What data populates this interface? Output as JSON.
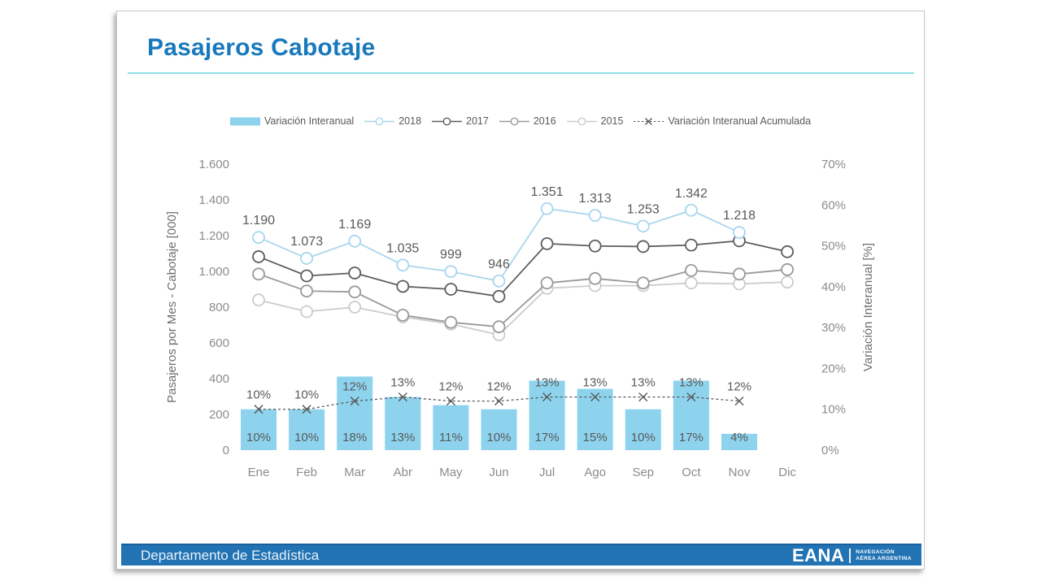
{
  "page": {
    "title": "Pasajeros Cabotaje"
  },
  "footer": {
    "department": "Departamento de Estadística",
    "logo_text": "EANA",
    "logo_sub1": "NAVEGACIÓN",
    "logo_sub2": "AÉREA ARGENTINA"
  },
  "colors": {
    "title_blue": "#1879bd",
    "title_underline": "#8ce1ea",
    "footer_blue": "#2173b4",
    "bar_fill": "#8ed3ee",
    "line_2018": "#a8d6ec",
    "line_2017": "#5d5d5d",
    "line_2016": "#9a9a9a",
    "line_2015": "#cccccc",
    "line_acumulada": "#5a5a5a",
    "label_gray": "#595959",
    "tick_gray": "#8c8c8c"
  },
  "chart_data": {
    "type": "combo bar+line",
    "categories": [
      "Ene",
      "Feb",
      "Mar",
      "Abr",
      "May",
      "Jun",
      "Jul",
      "Ago",
      "Sep",
      "Oct",
      "Nov",
      "Dic"
    ],
    "left_axis": {
      "title": "Pasajeros por Mes - Cabotaje [000]",
      "min": 0,
      "max": 1600,
      "tick_step": 200,
      "ticks": [
        "0",
        "200",
        "400",
        "600",
        "800",
        "1.000",
        "1.200",
        "1.400",
        "1.600"
      ]
    },
    "right_axis": {
      "title": "Variación Interanual [%]",
      "min": 0,
      "max": 70,
      "tick_step": 10,
      "ticks": [
        "0%",
        "10%",
        "20%",
        "30%",
        "40%",
        "50%",
        "60%",
        "70%"
      ]
    },
    "legend_position": "top",
    "grid": false,
    "series": [
      {
        "name": "Variación Interanual",
        "type": "bar",
        "axis": "right",
        "color": "#8ed3ee",
        "values": [
          10,
          10,
          18,
          13,
          11,
          10,
          17,
          15,
          10,
          17,
          4,
          null
        ],
        "labels": [
          "10%",
          "10%",
          "18%",
          "13%",
          "11%",
          "10%",
          "17%",
          "15%",
          "10%",
          "17%",
          "4%",
          null
        ]
      },
      {
        "name": "2018",
        "type": "line",
        "axis": "left",
        "color": "#a8d6ec",
        "values": [
          1190,
          1073,
          1169,
          1035,
          999,
          946,
          1351,
          1313,
          1253,
          1342,
          1218,
          null
        ],
        "labels": [
          "1.190",
          "1.073",
          "1.169",
          "1.035",
          "999",
          "946",
          "1.351",
          "1.313",
          "1.253",
          "1.342",
          "1.218",
          null
        ]
      },
      {
        "name": "2017",
        "type": "line",
        "axis": "left",
        "color": "#5d5d5d",
        "values": [
          1082,
          975,
          991,
          916,
          900,
          860,
          1155,
          1142,
          1139,
          1147,
          1171,
          1110
        ]
      },
      {
        "name": "2016",
        "type": "line",
        "axis": "left",
        "color": "#9a9a9a",
        "values": [
          985,
          890,
          885,
          755,
          715,
          690,
          935,
          960,
          935,
          1005,
          985,
          1010
        ]
      },
      {
        "name": "2015",
        "type": "line",
        "axis": "left",
        "color": "#cccccc",
        "values": [
          840,
          775,
          800,
          745,
          705,
          645,
          905,
          920,
          920,
          935,
          930,
          940
        ]
      },
      {
        "name": "Variación Interanual Acumulada",
        "type": "dashed",
        "axis": "right",
        "color": "#5a5a5a",
        "values": [
          10,
          10,
          12,
          13,
          12,
          12,
          13,
          13,
          13,
          13,
          12,
          null
        ],
        "labels": [
          "10%",
          "10%",
          "12%",
          "13%",
          "12%",
          "12%",
          "13%",
          "13%",
          "13%",
          "13%",
          "12%",
          null
        ]
      }
    ]
  }
}
